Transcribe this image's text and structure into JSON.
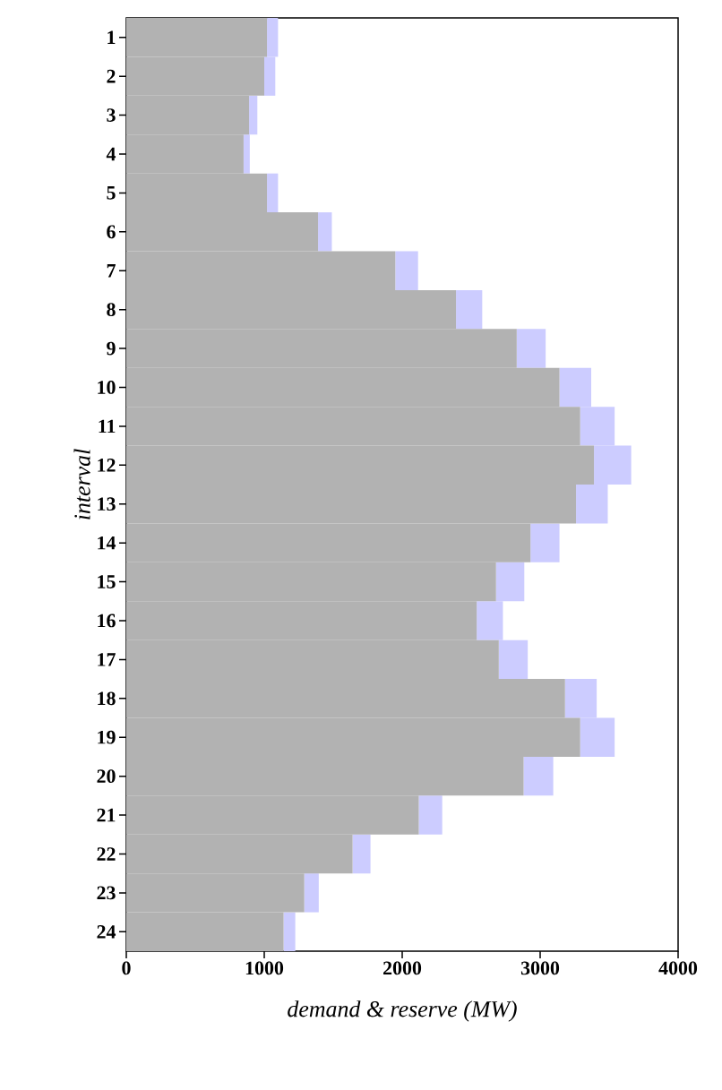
{
  "chart_data": {
    "type": "bar",
    "orientation": "horizontal",
    "stacked": true,
    "xlabel": "demand & reserve (MW)",
    "ylabel": "interval",
    "categories": [
      "1",
      "2",
      "3",
      "4",
      "5",
      "6",
      "7",
      "8",
      "9",
      "10",
      "11",
      "12",
      "13",
      "14",
      "15",
      "16",
      "17",
      "18",
      "19",
      "20",
      "21",
      "22",
      "23",
      "24"
    ],
    "series": [
      {
        "color": "#b2b2b2",
        "values": [
          1020,
          1000,
          890,
          850,
          1020,
          1390,
          1950,
          2390,
          2830,
          3140,
          3290,
          3390,
          3260,
          2930,
          2680,
          2540,
          2700,
          3180,
          3290,
          2880,
          2120,
          1640,
          1290,
          1140
        ]
      },
      {
        "color": "#ccccff",
        "values": [
          80,
          80,
          60,
          45,
          80,
          100,
          165,
          190,
          210,
          230,
          250,
          270,
          230,
          210,
          205,
          190,
          210,
          230,
          250,
          215,
          170,
          130,
          105,
          85
        ]
      }
    ],
    "xlim": [
      0,
      4000
    ],
    "xticks": [
      0,
      1000,
      2000,
      3000,
      4000
    ],
    "grid": false
  }
}
